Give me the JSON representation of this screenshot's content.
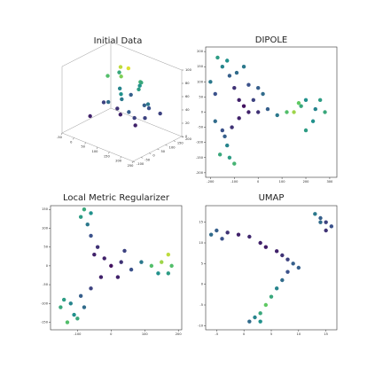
{
  "chart_data": [
    {
      "type": "scatter3d",
      "title": "Initial Data",
      "colormap": "viridis",
      "xlim": [
        -50,
        250
      ],
      "ylim": [
        -100,
        200
      ],
      "zlim": [
        0,
        100
      ],
      "xticks": [
        -50,
        0,
        50,
        100,
        150,
        200,
        250
      ],
      "yticks": [
        -100,
        -50,
        0,
        50,
        100,
        150,
        200
      ],
      "zticks": [
        0,
        20,
        40,
        60,
        80,
        100
      ],
      "x": [
        0,
        30,
        60,
        90,
        120,
        150,
        180,
        200,
        20,
        50,
        80,
        110,
        140,
        170,
        40,
        70,
        100,
        130,
        160,
        190,
        60,
        90,
        120,
        150,
        100,
        130
      ],
      "y": [
        0,
        40,
        80,
        120,
        20,
        60,
        100,
        140,
        150,
        110,
        70,
        30,
        130,
        90,
        50,
        10,
        160,
        120,
        40,
        80,
        100,
        60,
        140,
        20,
        90,
        110
      ],
      "z": [
        20,
        40,
        30,
        50,
        60,
        20,
        45,
        35,
        70,
        55,
        25,
        65,
        40,
        30,
        80,
        50,
        60,
        75,
        35,
        55,
        90,
        85,
        70,
        45,
        95,
        65
      ],
      "c": [
        0.1,
        0.2,
        0.15,
        0.3,
        0.4,
        0.1,
        0.25,
        0.2,
        0.6,
        0.45,
        0.1,
        0.5,
        0.3,
        0.2,
        0.7,
        0.35,
        0.5,
        0.65,
        0.2,
        0.4,
        0.9,
        0.8,
        0.6,
        0.3,
        0.95,
        0.55
      ]
    },
    {
      "type": "scatter",
      "title": "DIPOLE",
      "colormap": "viridis",
      "xlim": [
        -220,
        330
      ],
      "ylim": [
        -215,
        215
      ],
      "xticks": [
        -200,
        -100,
        0,
        100,
        200,
        300
      ],
      "yticks": [
        -200,
        -150,
        -100,
        -50,
        0,
        50,
        100,
        150,
        200
      ],
      "x": [
        -60,
        -40,
        -80,
        -100,
        -120,
        -150,
        -170,
        -130,
        -90,
        -60,
        -200,
        -180,
        -80,
        -110,
        -140,
        -130,
        -160,
        -120,
        -100,
        -150,
        -180,
        0,
        40,
        80,
        120,
        150,
        180,
        200,
        240,
        260,
        280,
        230,
        200,
        170,
        -20,
        0,
        20,
        -40
      ],
      "y": [
        20,
        0,
        40,
        80,
        120,
        150,
        180,
        170,
        130,
        150,
        100,
        60,
        -20,
        -50,
        -80,
        -110,
        -140,
        -150,
        -170,
        -60,
        -30,
        0,
        10,
        -10,
        0,
        0,
        20,
        40,
        10,
        40,
        0,
        -30,
        -60,
        30,
        40,
        80,
        60,
        90
      ],
      "c": [
        0.05,
        0.1,
        0.1,
        0.15,
        0.3,
        0.45,
        0.55,
        0.5,
        0.35,
        0.4,
        0.4,
        0.25,
        0.1,
        0.15,
        0.3,
        0.45,
        0.6,
        0.55,
        0.65,
        0.25,
        0.35,
        0.15,
        0.3,
        0.4,
        0.7,
        0.85,
        0.6,
        0.5,
        0.45,
        0.55,
        0.6,
        0.5,
        0.55,
        0.75,
        0.2,
        0.3,
        0.35,
        0.25
      ]
    },
    {
      "type": "scatter",
      "title": "Local Metric Regularizer",
      "colormap": "viridis",
      "xlim": [
        -180,
        210
      ],
      "ylim": [
        -170,
        160
      ],
      "xticks": [
        -100,
        0,
        100,
        200
      ],
      "yticks": [
        -150,
        -100,
        -50,
        0,
        50,
        100,
        150
      ],
      "x": [
        0,
        -20,
        -40,
        -60,
        -70,
        -90,
        -60,
        -80,
        -50,
        -30,
        -60,
        -90,
        -120,
        -150,
        -140,
        -110,
        -80,
        -100,
        -130,
        30,
        60,
        90,
        120,
        150,
        170,
        180,
        170,
        140,
        20,
        40
      ],
      "y": [
        0,
        20,
        50,
        80,
        110,
        130,
        140,
        150,
        30,
        -30,
        -60,
        -80,
        -100,
        -110,
        -90,
        -130,
        -110,
        -140,
        -150,
        10,
        -10,
        10,
        0,
        10,
        30,
        0,
        -20,
        -20,
        -30,
        40
      ],
      "c": [
        0.05,
        0.1,
        0.15,
        0.25,
        0.4,
        0.55,
        0.5,
        0.6,
        0.1,
        0.1,
        0.2,
        0.3,
        0.45,
        0.6,
        0.55,
        0.5,
        0.35,
        0.6,
        0.7,
        0.15,
        0.25,
        0.4,
        0.7,
        0.85,
        0.9,
        0.7,
        0.55,
        0.5,
        0.1,
        0.2
      ]
    },
    {
      "type": "scatter",
      "title": "UMAP",
      "colormap": "viridis",
      "xlim": [
        -7,
        17
      ],
      "ylim": [
        -11,
        19
      ],
      "xticks": [
        -5,
        0,
        5,
        10,
        15
      ],
      "yticks": [
        -10,
        -5,
        0,
        5,
        10,
        15
      ],
      "x": [
        -6,
        -5,
        -3,
        -1,
        1,
        3,
        4,
        6,
        7,
        8,
        9,
        8,
        7,
        6,
        5,
        4,
        3,
        2,
        1,
        3,
        13,
        14,
        15,
        16,
        15,
        14,
        -4,
        10
      ],
      "y": [
        12,
        13,
        12.5,
        12,
        11.5,
        10,
        9,
        8,
        7,
        6,
        5,
        3,
        1,
        -1,
        -3,
        -5,
        -7,
        -8,
        -9,
        -9,
        17,
        16,
        15,
        14,
        13,
        15,
        11,
        4
      ],
      "c": [
        0.35,
        0.3,
        0.15,
        0.1,
        0.12,
        0.1,
        0.08,
        0.1,
        0.15,
        0.2,
        0.3,
        0.25,
        0.35,
        0.45,
        0.6,
        0.75,
        0.6,
        0.45,
        0.35,
        0.5,
        0.4,
        0.3,
        0.2,
        0.25,
        0.15,
        0.35,
        0.25,
        0.3
      ]
    }
  ]
}
